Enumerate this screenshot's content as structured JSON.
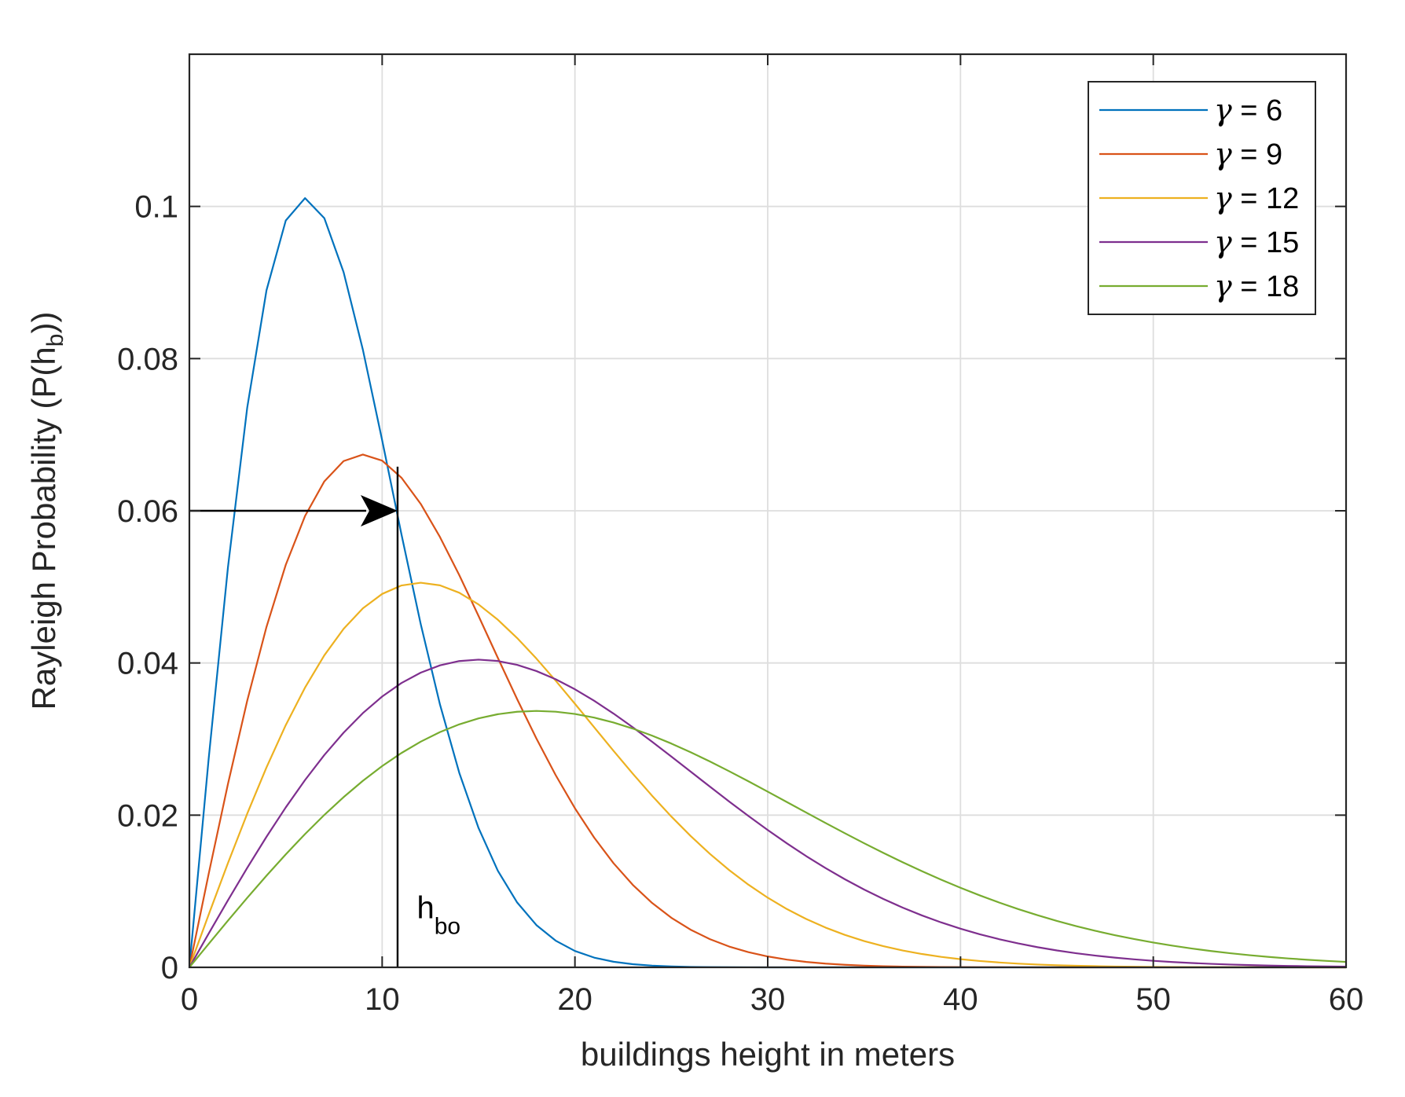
{
  "chart_data": {
    "type": "line",
    "title": "",
    "xlabel": "buildings height in meters",
    "ylabel": {
      "main": "Rayleigh Probability (P(h",
      "sub": "b",
      "close": "))"
    },
    "xlim": [
      0,
      60
    ],
    "ylim": [
      0,
      0.12
    ],
    "xticks": [
      0,
      10,
      20,
      30,
      40,
      50,
      60
    ],
    "xtick_labels": [
      "0",
      "10",
      "20",
      "30",
      "40",
      "50",
      "60"
    ],
    "yticks": [
      0,
      0.02,
      0.04,
      0.06,
      0.08,
      0.1
    ],
    "ytick_labels": [
      "0",
      "0.02",
      "0.04",
      "0.06",
      "0.08",
      "0.1"
    ],
    "grid": true,
    "legend_position": "top-right",
    "x_step": 1,
    "x_count": 61,
    "series": [
      {
        "name": "γ = 6",
        "gamma_symbol": "γ",
        "gamma_text": " = 6",
        "sigma": 6,
        "color": "#0072BD"
      },
      {
        "name": "γ = 9",
        "gamma_symbol": "γ",
        "gamma_text": " = 9",
        "sigma": 9,
        "color": "#D95319"
      },
      {
        "name": "γ = 12",
        "gamma_symbol": "γ",
        "gamma_text": " = 12",
        "sigma": 12,
        "color": "#EDB120"
      },
      {
        "name": "γ = 15",
        "gamma_symbol": "γ",
        "gamma_text": " = 15",
        "sigma": 15,
        "color": "#7E2F8E"
      },
      {
        "name": "γ = 18",
        "gamma_symbol": "γ",
        "gamma_text": " = 18",
        "sigma": 18,
        "color": "#77AC30"
      }
    ],
    "annotations": {
      "threshold_y": 0.06,
      "threshold_x": 10.8,
      "vertical_line_top": 0.0658,
      "label_main": "h",
      "label_sub": "bo",
      "label_x": 11.8,
      "label_y": 0.0075
    }
  }
}
